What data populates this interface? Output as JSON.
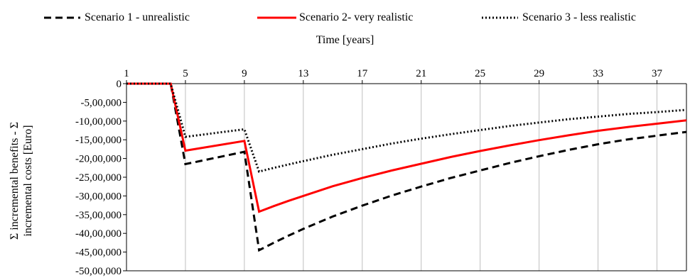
{
  "chart_data": {
    "type": "line",
    "title": "",
    "xlabel": "Time [years]",
    "ylabel_line1": "Σ incremental benefits - Σ",
    "ylabel_line2": "incremental costs [Euro]",
    "x_axis_position": "top",
    "xlim": [
      1,
      39
    ],
    "ylim": [
      -5000000,
      0
    ],
    "x_ticks": [
      1,
      5,
      9,
      13,
      17,
      21,
      25,
      29,
      33,
      37
    ],
    "y_ticks": [
      0,
      -500000,
      -1000000,
      -1500000,
      -2000000,
      -2500000,
      -3000000,
      -3500000,
      -4000000,
      -4500000,
      -5000000
    ],
    "y_tick_labels": [
      "0",
      "-5,00,000",
      "-10,00,000",
      "-15,00,000",
      "-20,00,000",
      "-25,00,000",
      "-30,00,000",
      "-35,00,000",
      "-40,00,000",
      "-45,00,000",
      "-50,00,000"
    ],
    "grid": "vertical",
    "legend_position": "top",
    "series": [
      {
        "name": "Scenario 1 - unrealistic",
        "color": "#000000",
        "dash": "dashed",
        "points": [
          [
            1,
            0
          ],
          [
            2,
            0
          ],
          [
            3,
            0
          ],
          [
            4,
            0
          ],
          [
            5,
            -2150000
          ],
          [
            9,
            -1820000
          ],
          [
            10,
            -4450000
          ],
          [
            11,
            -4250000
          ],
          [
            12,
            -4060000
          ],
          [
            13,
            -3880000
          ],
          [
            15,
            -3550000
          ],
          [
            17,
            -3260000
          ],
          [
            19,
            -2990000
          ],
          [
            21,
            -2750000
          ],
          [
            23,
            -2520000
          ],
          [
            25,
            -2320000
          ],
          [
            27,
            -2120000
          ],
          [
            29,
            -1940000
          ],
          [
            31,
            -1770000
          ],
          [
            33,
            -1620000
          ],
          [
            35,
            -1490000
          ],
          [
            37,
            -1390000
          ],
          [
            39,
            -1290000
          ]
        ]
      },
      {
        "name": "Scenario 2-  very realistic",
        "color": "#ff0000",
        "dash": "solid",
        "points": [
          [
            1,
            0
          ],
          [
            2,
            0
          ],
          [
            3,
            0
          ],
          [
            4,
            0
          ],
          [
            5,
            -1790000
          ],
          [
            9,
            -1530000
          ],
          [
            10,
            -3420000
          ],
          [
            11,
            -3270000
          ],
          [
            12,
            -3130000
          ],
          [
            13,
            -3000000
          ],
          [
            15,
            -2740000
          ],
          [
            17,
            -2520000
          ],
          [
            19,
            -2320000
          ],
          [
            21,
            -2140000
          ],
          [
            23,
            -1960000
          ],
          [
            25,
            -1800000
          ],
          [
            27,
            -1650000
          ],
          [
            29,
            -1510000
          ],
          [
            31,
            -1380000
          ],
          [
            33,
            -1260000
          ],
          [
            35,
            -1160000
          ],
          [
            37,
            -1070000
          ],
          [
            39,
            -980000
          ]
        ]
      },
      {
        "name": "Scenario 3 - less  realistic",
        "color": "#000000",
        "dash": "dotted",
        "points": [
          [
            1,
            0
          ],
          [
            2,
            0
          ],
          [
            3,
            0
          ],
          [
            4,
            0
          ],
          [
            5,
            -1420000
          ],
          [
            9,
            -1220000
          ],
          [
            10,
            -2350000
          ],
          [
            11,
            -2250000
          ],
          [
            12,
            -2160000
          ],
          [
            13,
            -2070000
          ],
          [
            15,
            -1900000
          ],
          [
            17,
            -1750000
          ],
          [
            19,
            -1600000
          ],
          [
            21,
            -1470000
          ],
          [
            23,
            -1350000
          ],
          [
            25,
            -1240000
          ],
          [
            27,
            -1130000
          ],
          [
            29,
            -1040000
          ],
          [
            31,
            -950000
          ],
          [
            33,
            -880000
          ],
          [
            35,
            -810000
          ],
          [
            37,
            -760000
          ],
          [
            39,
            -700000
          ]
        ]
      }
    ]
  }
}
